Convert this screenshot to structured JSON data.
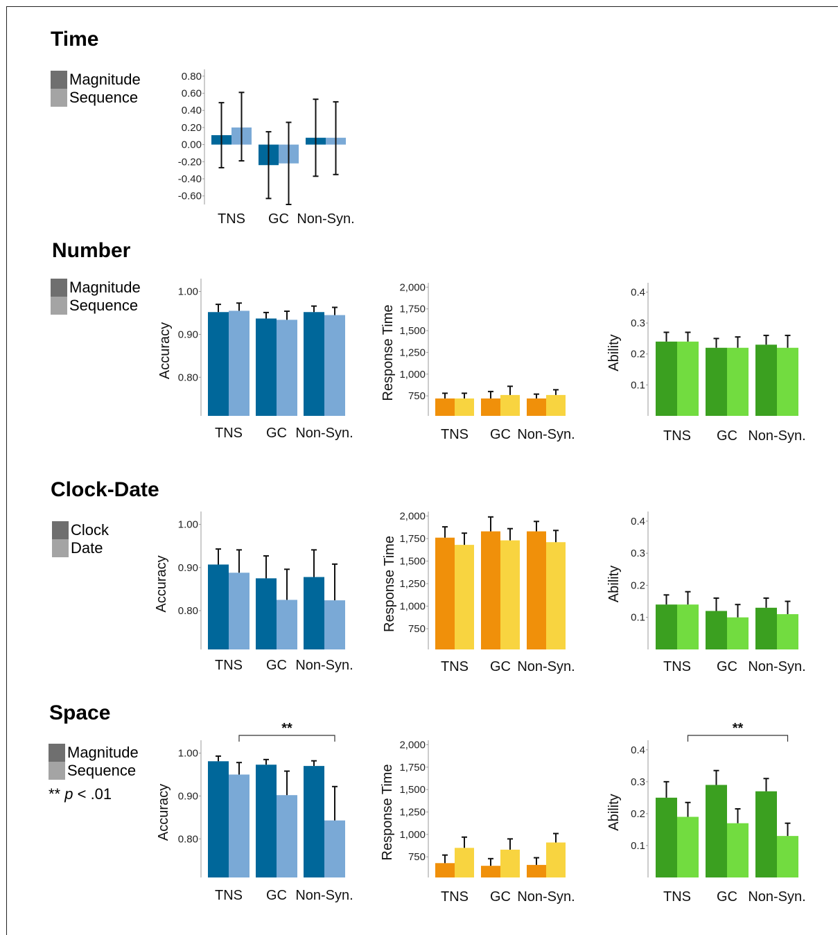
{
  "colors": {
    "accuracy": [
      "#00679a",
      "#7aa9d6"
    ],
    "rt": [
      "#f0900a",
      "#f8d440"
    ],
    "ability": [
      "#3ba020",
      "#72dc40"
    ],
    "legend": [
      "#6f6f6f",
      "#a4a4a4"
    ]
  },
  "sections": [
    {
      "title": "Time",
      "legend": [
        "Magnitude",
        "Sequence"
      ],
      "note": null
    },
    {
      "title": "Number",
      "legend": [
        "Magnitude",
        "Sequence"
      ],
      "note": null
    },
    {
      "title": "Clock-Date",
      "legend": [
        "Clock",
        "Date"
      ],
      "note": null
    },
    {
      "title": "Space",
      "legend": [
        "Magnitude",
        "Sequence"
      ],
      "note": {
        "stars": "**",
        "p": "p",
        "rest": " < .01"
      }
    }
  ],
  "chart_data": [
    {
      "type": "bar",
      "section": "Time",
      "metric": "accuracy",
      "categories": [
        "TNS",
        "GC",
        "Non-Syn."
      ],
      "ylabel": "",
      "ylim": [
        -0.7,
        0.88
      ],
      "ticks": [
        "0.80",
        "0.60",
        "0.40",
        "0.20",
        "0.00",
        "-0.20",
        "-0.40",
        "-0.60"
      ],
      "series": [
        {
          "name": "Magnitude",
          "values": [
            0.11,
            -0.24,
            0.08
          ],
          "err_low": [
            -0.27,
            -0.63,
            -0.37
          ],
          "err_high": [
            0.49,
            0.15,
            0.53
          ]
        },
        {
          "name": "Sequence",
          "values": [
            0.2,
            -0.22,
            0.08
          ],
          "err_low": [
            -0.19,
            -0.7,
            -0.35
          ],
          "err_high": [
            0.61,
            0.26,
            0.5
          ]
        }
      ]
    },
    {
      "type": "bar",
      "section": "Number",
      "metric": "accuracy",
      "categories": [
        "TNS",
        "GC",
        "Non-Syn."
      ],
      "ylabel": "Accuracy",
      "ylim": [
        0.71,
        1.03
      ],
      "ticks": [
        "1.00",
        "0.90",
        "0.80"
      ],
      "series": [
        {
          "name": "Magnitude",
          "values": [
            0.952,
            0.937,
            0.952
          ],
          "err": [
            0.018,
            0.014,
            0.014
          ]
        },
        {
          "name": "Sequence",
          "values": [
            0.955,
            0.934,
            0.945
          ],
          "err": [
            0.018,
            0.02,
            0.018
          ]
        }
      ]
    },
    {
      "type": "bar",
      "section": "Number",
      "metric": "rt",
      "categories": [
        "TNS",
        "GC",
        "Non-Syn."
      ],
      "ylabel": "Response Time",
      "ylim": [
        520,
        2050
      ],
      "ticks": [
        "2,000",
        "1,750",
        "1,500",
        "1,250",
        "1,000",
        "750"
      ],
      "series": [
        {
          "name": "Magnitude",
          "values": [
            720,
            720,
            720
          ],
          "err": [
            60,
            80,
            50
          ]
        },
        {
          "name": "Sequence",
          "values": [
            720,
            760,
            760
          ],
          "err": [
            60,
            100,
            60
          ]
        }
      ]
    },
    {
      "type": "bar",
      "section": "Number",
      "metric": "ability",
      "categories": [
        "TNS",
        "GC",
        "Non-Syn."
      ],
      "ylabel": "Ability",
      "ylim": [
        0.0,
        0.43
      ],
      "ticks": [
        "0.4",
        "0.3",
        "0.2",
        "0.1"
      ],
      "series": [
        {
          "name": "Magnitude",
          "values": [
            0.24,
            0.22,
            0.23
          ],
          "err": [
            0.03,
            0.03,
            0.03
          ]
        },
        {
          "name": "Sequence",
          "values": [
            0.24,
            0.22,
            0.22
          ],
          "err": [
            0.03,
            0.035,
            0.04
          ]
        }
      ]
    },
    {
      "type": "bar",
      "section": "Clock-Date",
      "metric": "accuracy",
      "categories": [
        "TNS",
        "GC",
        "Non-Syn."
      ],
      "ylabel": "Accuracy",
      "ylim": [
        0.71,
        1.03
      ],
      "ticks": [
        "1.00",
        "0.90",
        "0.80"
      ],
      "series": [
        {
          "name": "Clock",
          "values": [
            0.907,
            0.875,
            0.878
          ],
          "err": [
            0.036,
            0.052,
            0.063
          ]
        },
        {
          "name": "Date",
          "values": [
            0.888,
            0.825,
            0.824
          ],
          "err": [
            0.053,
            0.071,
            0.084
          ]
        }
      ]
    },
    {
      "type": "bar",
      "section": "Clock-Date",
      "metric": "rt",
      "categories": [
        "TNS",
        "GC",
        "Non-Syn."
      ],
      "ylabel": "Response Time",
      "ylim": [
        520,
        2050
      ],
      "ticks": [
        "2,000",
        "1,750",
        "1,500",
        "1,250",
        "1,000",
        "750"
      ],
      "series": [
        {
          "name": "Clock",
          "values": [
            1760,
            1830,
            1830
          ],
          "err": [
            120,
            160,
            110
          ]
        },
        {
          "name": "Date",
          "values": [
            1680,
            1730,
            1710
          ],
          "err": [
            130,
            130,
            130
          ]
        }
      ]
    },
    {
      "type": "bar",
      "section": "Clock-Date",
      "metric": "ability",
      "categories": [
        "TNS",
        "GC",
        "Non-Syn."
      ],
      "ylabel": "Ability",
      "ylim": [
        0.0,
        0.43
      ],
      "ticks": [
        "0.4",
        "0.3",
        "0.2",
        "0.1"
      ],
      "series": [
        {
          "name": "Clock",
          "values": [
            0.14,
            0.12,
            0.13
          ],
          "err": [
            0.03,
            0.04,
            0.03
          ]
        },
        {
          "name": "Date",
          "values": [
            0.14,
            0.1,
            0.11
          ],
          "err": [
            0.04,
            0.04,
            0.04
          ]
        }
      ]
    },
    {
      "type": "bar",
      "section": "Space",
      "metric": "accuracy",
      "categories": [
        "TNS",
        "GC",
        "Non-Syn."
      ],
      "ylabel": "Accuracy",
      "ylim": [
        0.71,
        1.03
      ],
      "ticks": [
        "1.00",
        "0.90",
        "0.80"
      ],
      "series": [
        {
          "name": "Magnitude",
          "values": [
            0.981,
            0.973,
            0.97
          ],
          "err": [
            0.012,
            0.012,
            0.012
          ]
        },
        {
          "name": "Sequence",
          "values": [
            0.95,
            0.902,
            0.843
          ],
          "err": [
            0.028,
            0.056,
            0.079
          ]
        }
      ]
    },
    {
      "type": "bar",
      "section": "Space",
      "metric": "rt",
      "categories": [
        "TNS",
        "GC",
        "Non-Syn."
      ],
      "ylabel": "Response Time",
      "ylim": [
        520,
        2050
      ],
      "ticks": [
        "2,000",
        "1,750",
        "1,500",
        "1,250",
        "1,000",
        "750"
      ],
      "series": [
        {
          "name": "Magnitude",
          "values": [
            680,
            650,
            660
          ],
          "err": [
            90,
            80,
            80
          ]
        },
        {
          "name": "Sequence",
          "values": [
            850,
            830,
            910
          ],
          "err": [
            120,
            120,
            100
          ]
        }
      ]
    },
    {
      "type": "bar",
      "section": "Space",
      "metric": "ability",
      "categories": [
        "TNS",
        "GC",
        "Non-Syn."
      ],
      "ylabel": "Ability",
      "ylim": [
        0.0,
        0.43
      ],
      "ticks": [
        "0.4",
        "0.3",
        "0.2",
        "0.1"
      ],
      "series": [
        {
          "name": "Magnitude",
          "values": [
            0.25,
            0.29,
            0.27
          ],
          "err": [
            0.05,
            0.045,
            0.04
          ]
        },
        {
          "name": "Sequence",
          "values": [
            0.19,
            0.17,
            0.13
          ],
          "err": [
            0.045,
            0.045,
            0.04
          ]
        }
      ]
    }
  ],
  "significance": [
    {
      "chart": 7,
      "label": "**",
      "from": 0,
      "to": 2
    },
    {
      "chart": 9,
      "label": "**",
      "from": 0,
      "to": 2
    }
  ]
}
